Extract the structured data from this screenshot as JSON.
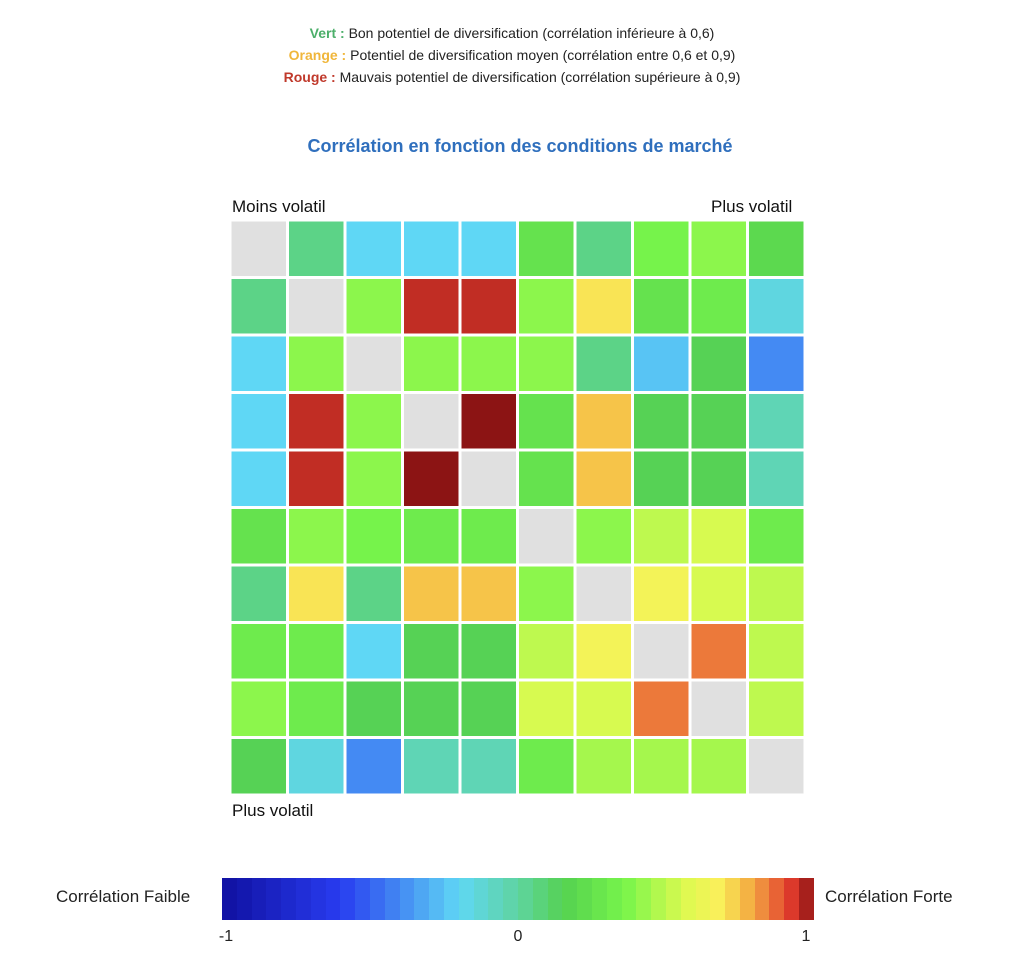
{
  "legend": [
    {
      "key": "Vert :",
      "text": "Bon potentiel de diversification (corrélation inférieure à 0,6)",
      "color": "#4caf6a"
    },
    {
      "key": "Orange :",
      "text": "Potentiel de diversification moyen (corrélation entre 0,6 et 0,9)",
      "color": "#f0b63a"
    },
    {
      "key": "Rouge :",
      "text": "Mauvais potentiel de diversification (corrélation supérieure à 0,9)",
      "color": "#c0392b"
    }
  ],
  "chart_data": {
    "type": "heatmap",
    "title": "Corrélation en fonction des conditions de marché",
    "corner_labels": {
      "top_left": "Moins volatil",
      "top_right": "Plus volatil",
      "bottom_left": "Plus volatil"
    },
    "rows": 10,
    "cols": 10,
    "diagonal_color": "#e0e0e0",
    "values": [
      [
        null,
        0.05,
        -0.2,
        -0.2,
        -0.2,
        0.25,
        0.05,
        0.35,
        0.4,
        0.2
      ],
      [
        0.05,
        null,
        0.4,
        0.95,
        0.95,
        0.4,
        0.7,
        0.25,
        0.3,
        -0.15
      ],
      [
        -0.2,
        0.4,
        null,
        0.4,
        0.4,
        0.4,
        0.05,
        -0.25,
        0.15,
        -0.4
      ],
      [
        -0.2,
        0.95,
        0.4,
        null,
        1.0,
        0.25,
        0.75,
        0.15,
        0.15,
        -0.05
      ],
      [
        -0.2,
        0.95,
        0.4,
        1.0,
        null,
        0.25,
        0.75,
        0.15,
        0.15,
        -0.05
      ],
      [
        0.25,
        0.4,
        0.35,
        0.3,
        0.3,
        null,
        0.4,
        0.5,
        0.55,
        0.3
      ],
      [
        0.05,
        0.7,
        0.05,
        0.75,
        0.75,
        0.4,
        null,
        0.65,
        0.55,
        0.5
      ],
      [
        0.3,
        0.3,
        -0.2,
        0.15,
        0.15,
        0.5,
        0.65,
        null,
        0.85,
        0.5
      ],
      [
        0.4,
        0.3,
        0.15,
        0.15,
        0.15,
        0.55,
        0.55,
        0.85,
        null,
        0.5
      ],
      [
        0.15,
        -0.15,
        -0.4,
        -0.05,
        -0.05,
        0.3,
        0.45,
        0.45,
        0.45,
        null
      ]
    ],
    "colorbar": {
      "low_label": "Corrélation Faible",
      "high_label": "Corrélation Forte",
      "ticks": [
        "-1",
        "0",
        "1"
      ],
      "range": [
        -1,
        1
      ]
    }
  }
}
